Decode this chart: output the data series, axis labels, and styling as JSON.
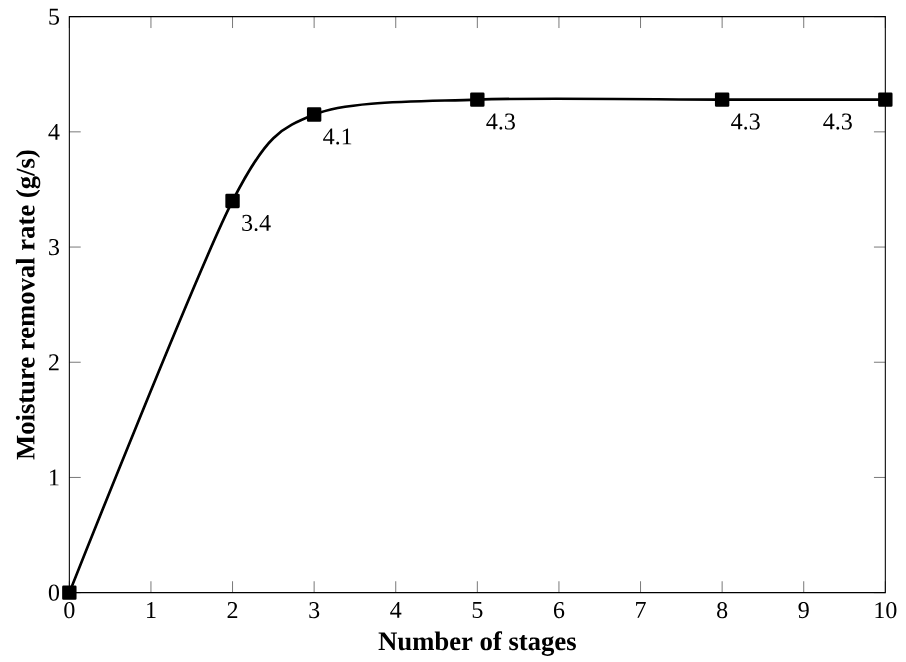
{
  "chart_data": {
    "type": "line",
    "xlabel": "Number of stages",
    "ylabel": "Moisture removal rate (g/s)",
    "x": [
      0,
      2,
      3,
      5,
      8,
      10
    ],
    "series": [
      {
        "color": "#000000",
        "values": [
          0,
          3.4,
          4.15,
          4.28,
          4.28,
          4.28
        ],
        "value_labels": [
          null,
          "3.4",
          "4.1",
          "4.3",
          "4.3",
          "4.3"
        ]
      }
    ],
    "xlim": [
      0,
      10
    ],
    "xticks": [
      0,
      1,
      2,
      3,
      4,
      5,
      6,
      7,
      8,
      9,
      10
    ],
    "ylim": [
      0,
      5
    ],
    "yticks": [
      0,
      1,
      2,
      3,
      4,
      5
    ],
    "marker": "square",
    "line_style": "solid",
    "grid": false
  }
}
